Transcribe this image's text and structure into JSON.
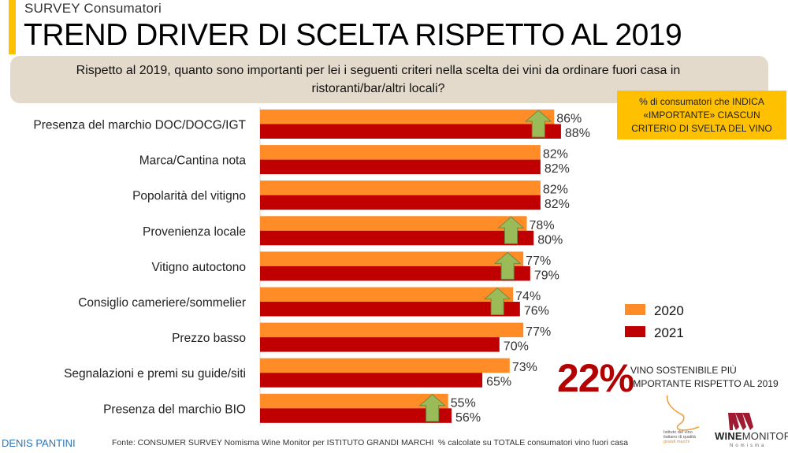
{
  "header": {
    "survey_label": "SURVEY Consumatori",
    "title": "TREND DRIVER DI SCELTA RISPETTO AL 2019",
    "question": "Rispetto al 2019, quanto sono importanti per lei i seguenti criteri nella scelta dei vini da ordinare fuori casa in ristoranti/bar/altri locali?"
  },
  "note_box": {
    "line1": "% di consumatori che INDICA",
    "line2": "«IMPORTANTE» CIASCUN",
    "line3": "CRITERIO DI SVELTA DEL VINO"
  },
  "highlight": {
    "value": "22%",
    "line1": "VINO SOSTENIBILE PIÙ",
    "line2": "IMPORTANTE RISPETTO AL 2019"
  },
  "footer": {
    "author": "DENIS PANTINI",
    "source": "Fonte: CONSUMER SURVEY Nomisma Wine Monitor per ISTITUTO GRANDI MARCHI",
    "calc_note": "% calcolate su TOTALE consumatori vino fuori casa",
    "logo_igm_line1": "Istituto del vino",
    "logo_igm_line2": "italiano di qualità",
    "logo_igm_line3": "grandi marchi",
    "logo_wm_bold": "WINE",
    "logo_wm_rest": "MONITOR",
    "logo_wm_sub": "Nomisma"
  },
  "colors": {
    "series_2020": "#FF8C27",
    "series_2021": "#C00000",
    "arrow_fill": "#9BBB59",
    "arrow_stroke": "#71893F",
    "accent": "#FFC000"
  },
  "chart_data": {
    "type": "bar",
    "orientation": "horizontal",
    "title": "TREND DRIVER DI SCELTA RISPETTO AL 2019",
    "xlabel": "",
    "ylabel": "",
    "xlim": [
      0,
      100
    ],
    "grid": false,
    "legend_position": "right",
    "value_suffix": "%",
    "categories": [
      "Presenza del marchio DOC/DOCG/IGT",
      "Marca/Cantina nota",
      "Popolarità del vitigno",
      "Provenienza locale",
      "Vitigno autoctono",
      "Consiglio cameriere/sommelier",
      "Prezzo basso",
      "Segnalazioni e premi su guide/siti",
      "Presenza del marchio BIO"
    ],
    "series": [
      {
        "name": "2020",
        "values": [
          86,
          82,
          82,
          78,
          77,
          74,
          77,
          73,
          55
        ]
      },
      {
        "name": "2021",
        "values": [
          88,
          82,
          82,
          80,
          79,
          76,
          70,
          65,
          56
        ]
      }
    ],
    "increase_arrows": [
      true,
      false,
      false,
      true,
      true,
      true,
      false,
      false,
      true
    ]
  }
}
